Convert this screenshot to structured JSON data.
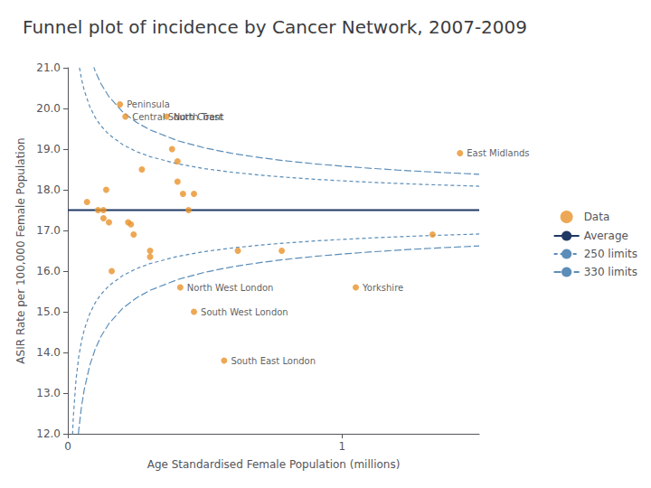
{
  "chart_data": {
    "type": "scatter",
    "title": "Funnel plot of incidence by Cancer Network, 2007-2009",
    "xlabel": "Age Standardised Female Population (millions)",
    "ylabel": "ASIR Rate per 100,000 Female Population",
    "xlim": [
      0,
      1.5
    ],
    "ylim": [
      12.0,
      21.0
    ],
    "xticks": [
      0,
      1
    ],
    "yticks": [
      {
        "value": 12.0,
        "label": "12.0"
      },
      {
        "value": 13.0,
        "label": "13.0"
      },
      {
        "value": 14.0,
        "label": "14.0"
      },
      {
        "value": 15.0,
        "label": "15.0"
      },
      {
        "value": 16.0,
        "label": "16.0"
      },
      {
        "value": 17.0,
        "label": "17.0"
      },
      {
        "value": 18.0,
        "label": "18.0"
      },
      {
        "value": 19.0,
        "label": "19.0"
      },
      {
        "value": 20.0,
        "label": "20.0"
      },
      {
        "value": 21.0,
        "label": "21.0"
      }
    ],
    "grid": false,
    "legend": "right",
    "series": [
      {
        "name": "Data",
        "type": "scatter",
        "color": "#E8922A",
        "marker": "circle",
        "x": [
          0.07,
          0.11,
          0.13,
          0.13,
          0.14,
          0.15,
          0.16,
          0.19,
          0.21,
          0.22,
          0.23,
          0.24,
          0.27,
          0.3,
          0.3,
          0.36,
          0.38,
          0.4,
          0.4,
          0.42,
          0.44,
          0.46,
          0.41,
          0.46,
          0.57,
          0.62,
          0.78,
          1.05,
          1.33,
          1.43
        ],
        "values": [
          17.7,
          17.5,
          17.5,
          17.3,
          18.0,
          17.2,
          16.0,
          20.1,
          19.8,
          17.2,
          17.15,
          16.9,
          18.5,
          16.5,
          16.35,
          19.8,
          19.0,
          18.7,
          18.2,
          17.9,
          17.5,
          17.9,
          15.6,
          15.0,
          13.8,
          16.5,
          16.5,
          15.6,
          16.9,
          18.9
        ],
        "labels": [
          null,
          null,
          null,
          null,
          null,
          null,
          null,
          "Peninsula",
          "Central South Coast",
          null,
          null,
          null,
          null,
          null,
          null,
          "North Trent",
          null,
          null,
          null,
          null,
          null,
          null,
          "North West London",
          "South West London",
          "South East London",
          null,
          null,
          "Yorkshire",
          null,
          "East Midlands"
        ]
      },
      {
        "name": "Average",
        "type": "hline",
        "color": "#1F3864",
        "line_style": "solid",
        "values": [
          17.5
        ]
      },
      {
        "name": "250 limits",
        "type": "line",
        "color": "#5B8DB8",
        "line_style": "dashed",
        "x": [
          0.005,
          0.01,
          0.015,
          0.02,
          0.03,
          0.04,
          0.05,
          0.06,
          0.08,
          0.1,
          0.12,
          0.15,
          0.2,
          0.25,
          0.3,
          0.4,
          0.5,
          0.6,
          0.7,
          0.8,
          0.9,
          1.0,
          1.1,
          1.2,
          1.3,
          1.4,
          1.5
        ],
        "upper": [
          27.682,
          24.7,
          23.379,
          22.591,
          21.657,
          21.1,
          20.72,
          20.439,
          20.046,
          19.777,
          19.578,
          19.359,
          19.11,
          18.94,
          18.815,
          18.638,
          18.518,
          18.43,
          18.361,
          18.305,
          18.259,
          18.22,
          18.186,
          18.157,
          18.131,
          18.109,
          18.088
        ],
        "lower": [
          7.318,
          10.3,
          11.621,
          12.409,
          13.343,
          13.9,
          14.28,
          14.561,
          14.954,
          15.223,
          15.422,
          15.641,
          15.89,
          16.06,
          16.185,
          16.362,
          16.482,
          16.57,
          16.639,
          16.695,
          16.741,
          16.78,
          16.814,
          16.843,
          16.869,
          16.891,
          16.912
        ]
      },
      {
        "name": "330 limits",
        "type": "line",
        "color": "#5B8DB8",
        "line_style": "long-dashed",
        "x": [
          0.005,
          0.01,
          0.015,
          0.02,
          0.03,
          0.04,
          0.05,
          0.06,
          0.08,
          0.1,
          0.12,
          0.15,
          0.2,
          0.25,
          0.3,
          0.4,
          0.5,
          0.6,
          0.7,
          0.8,
          0.9,
          1.0,
          1.1,
          1.2,
          1.3,
          1.4,
          1.5
        ],
        "upper": [
          32.774,
          28.3,
          26.318,
          25.137,
          23.735,
          22.9,
          22.33,
          21.909,
          21.318,
          20.915,
          20.618,
          20.289,
          19.915,
          19.66,
          19.472,
          19.208,
          19.027,
          18.894,
          18.791,
          18.707,
          18.638,
          18.58,
          18.53,
          18.486,
          18.447,
          18.413,
          18.382
        ],
        "lower": [
          2.226,
          6.7,
          8.682,
          9.863,
          11.265,
          12.1,
          12.67,
          13.091,
          13.682,
          14.085,
          14.382,
          14.711,
          15.085,
          15.34,
          15.528,
          15.792,
          15.973,
          16.106,
          16.209,
          16.293,
          16.362,
          16.42,
          16.47,
          16.514,
          16.553,
          16.587,
          16.618
        ]
      }
    ]
  }
}
